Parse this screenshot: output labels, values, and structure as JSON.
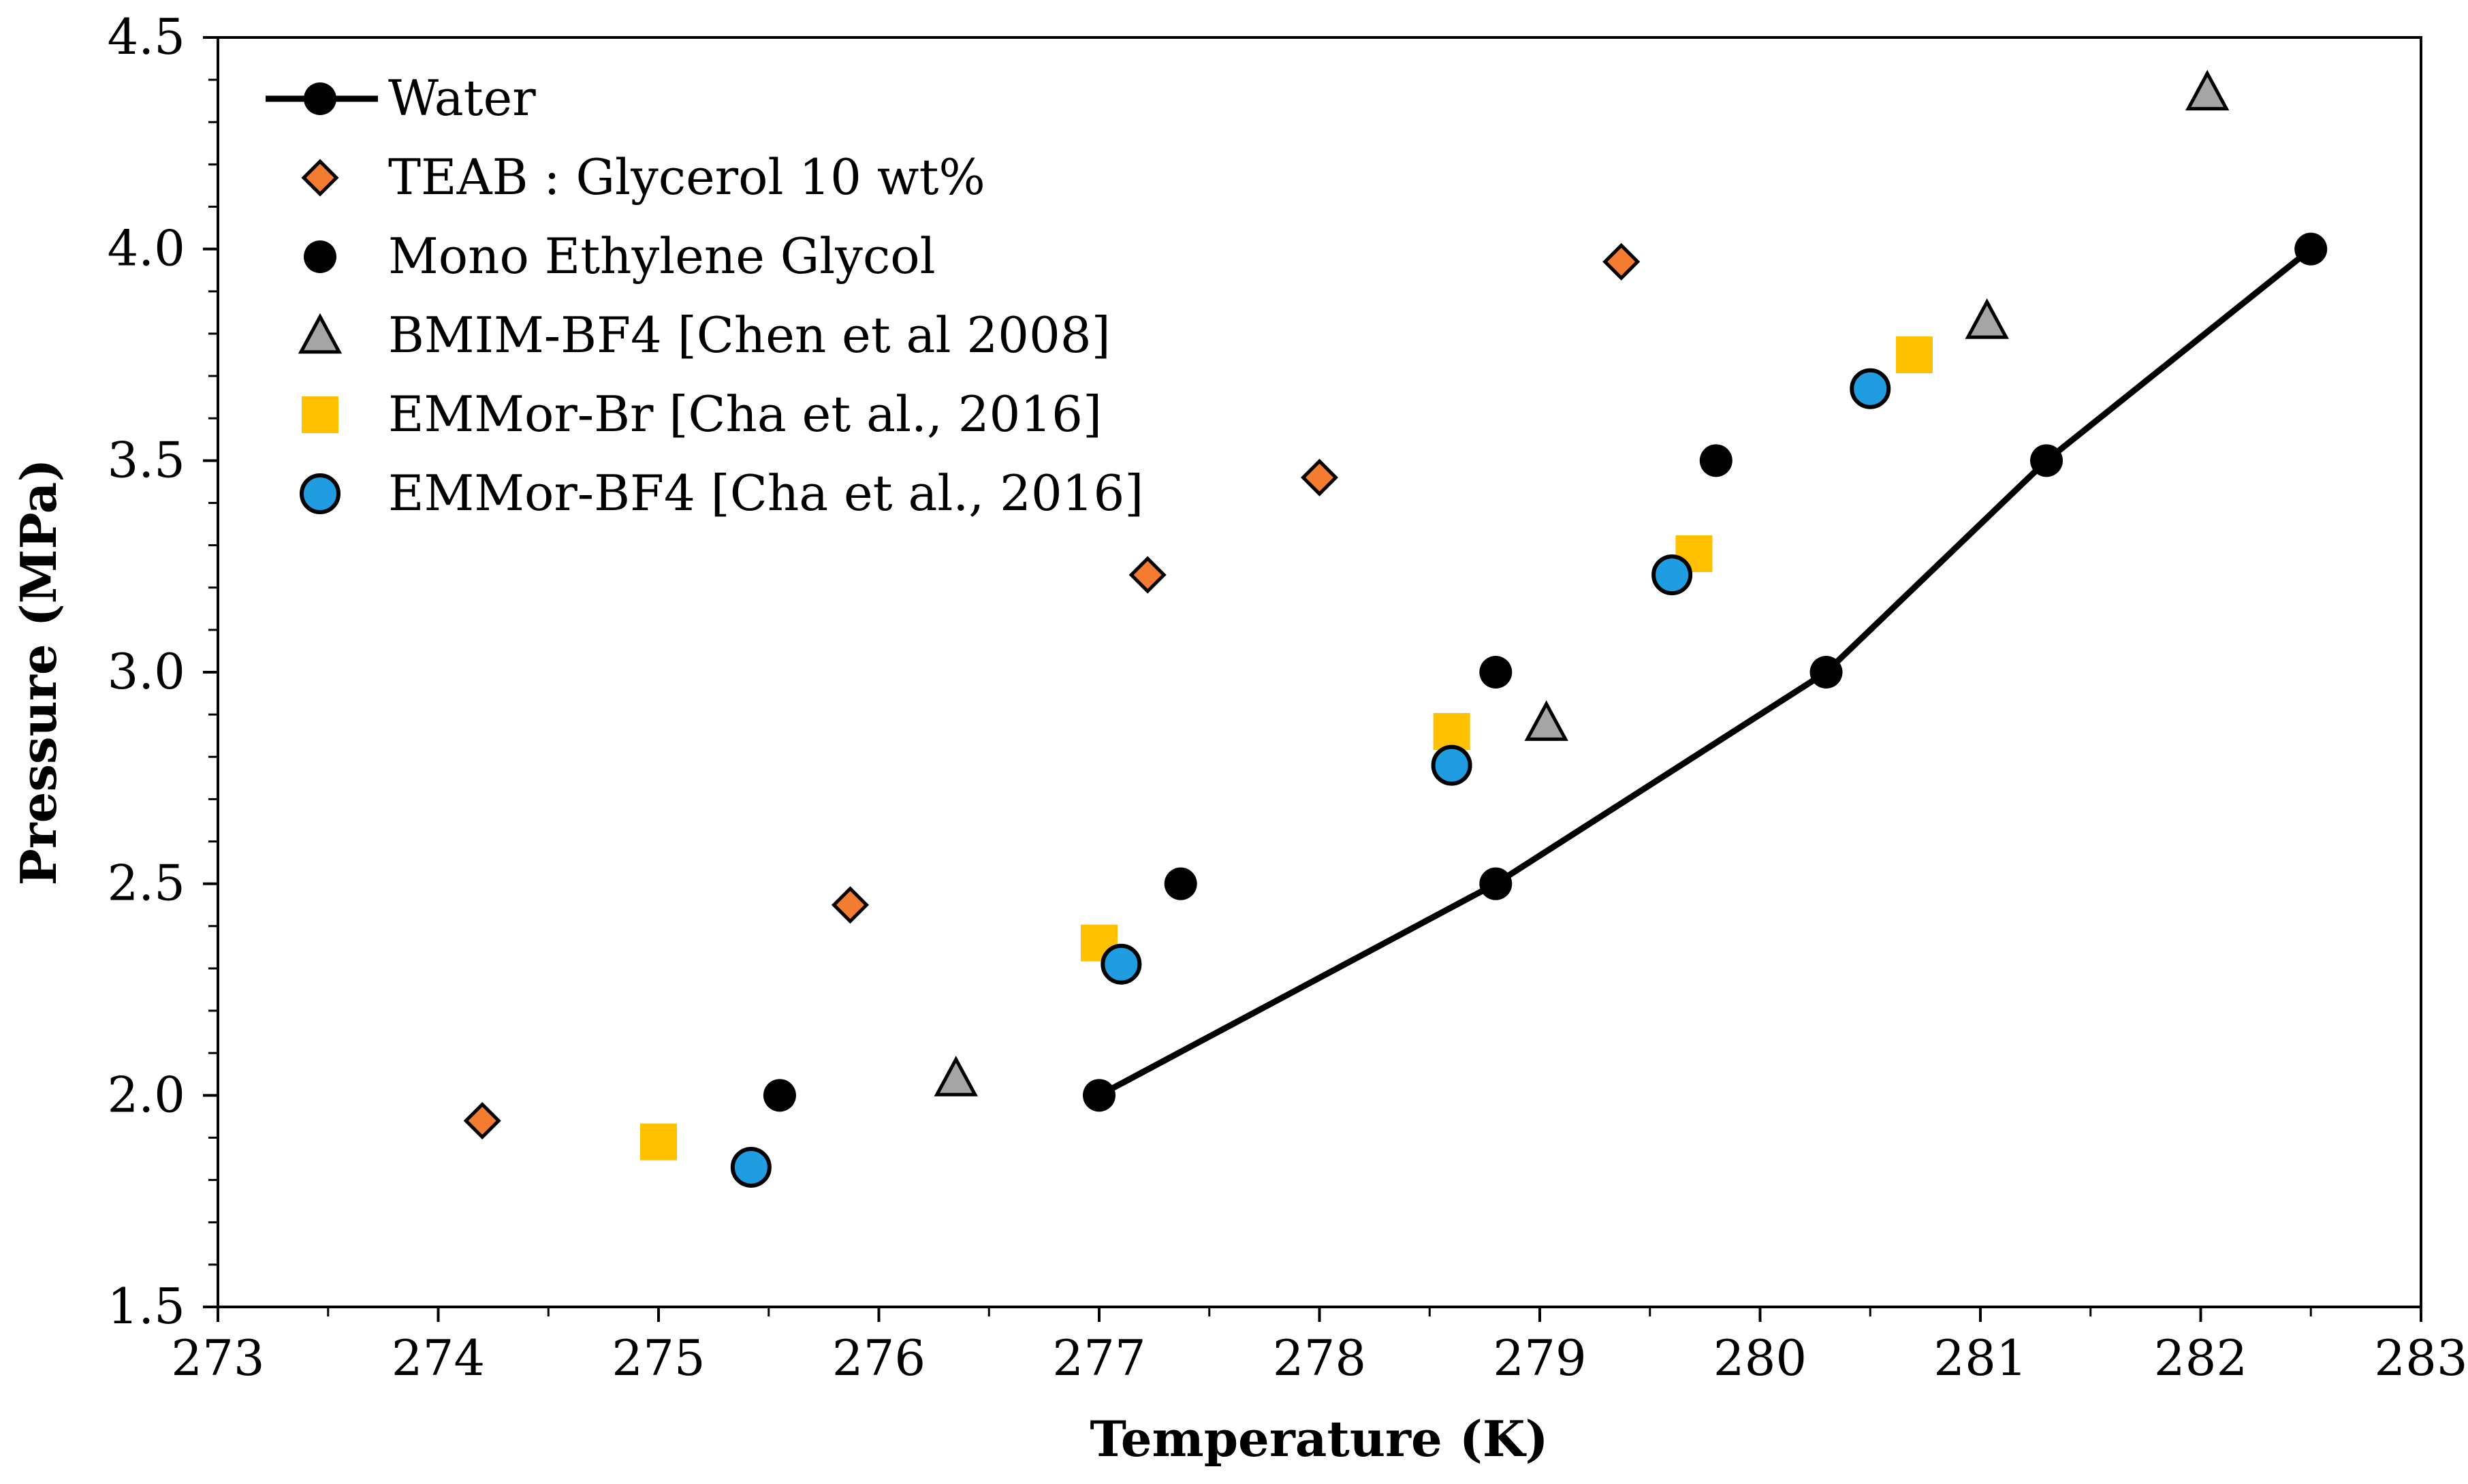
{
  "chart_data": {
    "type": "scatter",
    "title": "",
    "xlabel": "Temperature (K)",
    "ylabel": "Pressure (MPa)",
    "xlim": [
      273,
      283
    ],
    "ylim": [
      1.5,
      4.5
    ],
    "x_ticks": [
      "273",
      "274",
      "275",
      "276",
      "277",
      "278",
      "279",
      "280",
      "281",
      "282",
      "283"
    ],
    "y_ticks": [
      "1.5",
      "2.0",
      "2.5",
      "3.0",
      "3.5",
      "4.0",
      "4.5"
    ],
    "grid": false,
    "legend_position": "top-left",
    "series": [
      {
        "name": "Water",
        "marker": "circle",
        "line": true,
        "color": "#000000",
        "points": [
          [
            277.0,
            2.0
          ],
          [
            278.8,
            2.5
          ],
          [
            280.3,
            3.0
          ],
          [
            281.3,
            3.5
          ],
          [
            282.5,
            4.0
          ]
        ]
      },
      {
        "name": "TEAB : Glycerol 10 wt%",
        "marker": "diamond",
        "line": false,
        "color": "#F47C30",
        "points": [
          [
            274.2,
            1.94
          ],
          [
            275.87,
            2.45
          ],
          [
            277.22,
            3.23
          ],
          [
            278.0,
            3.46
          ],
          [
            279.37,
            3.97
          ]
        ]
      },
      {
        "name": "Mono Ethylene Glycol",
        "marker": "circle",
        "line": false,
        "color": "#000000",
        "points": [
          [
            275.55,
            2.0
          ],
          [
            277.37,
            2.5
          ],
          [
            278.8,
            3.0
          ],
          [
            279.8,
            3.5
          ]
        ]
      },
      {
        "name": "BMIM-BF4 [Chen et al 2008]",
        "marker": "triangle",
        "line": false,
        "color": "#A5A5A5",
        "points": [
          [
            276.35,
            2.04
          ],
          [
            279.03,
            2.88
          ],
          [
            281.03,
            3.83
          ],
          [
            282.03,
            4.37
          ]
        ]
      },
      {
        "name": "EMMor-Br [Cha et al., 2016]",
        "marker": "square",
        "line": false,
        "color": "#FFC000",
        "points": [
          [
            275.0,
            1.89
          ],
          [
            277.0,
            2.36
          ],
          [
            278.6,
            2.86
          ],
          [
            279.7,
            3.28
          ],
          [
            280.7,
            3.75
          ]
        ]
      },
      {
        "name": "EMMor-BF4 [Cha et al., 2016]",
        "marker": "circle",
        "line": false,
        "color": "#1F9DE0",
        "points": [
          [
            275.42,
            1.83
          ],
          [
            277.1,
            2.31
          ],
          [
            278.6,
            2.78
          ],
          [
            279.6,
            3.23
          ],
          [
            280.5,
            3.67
          ]
        ]
      }
    ]
  }
}
